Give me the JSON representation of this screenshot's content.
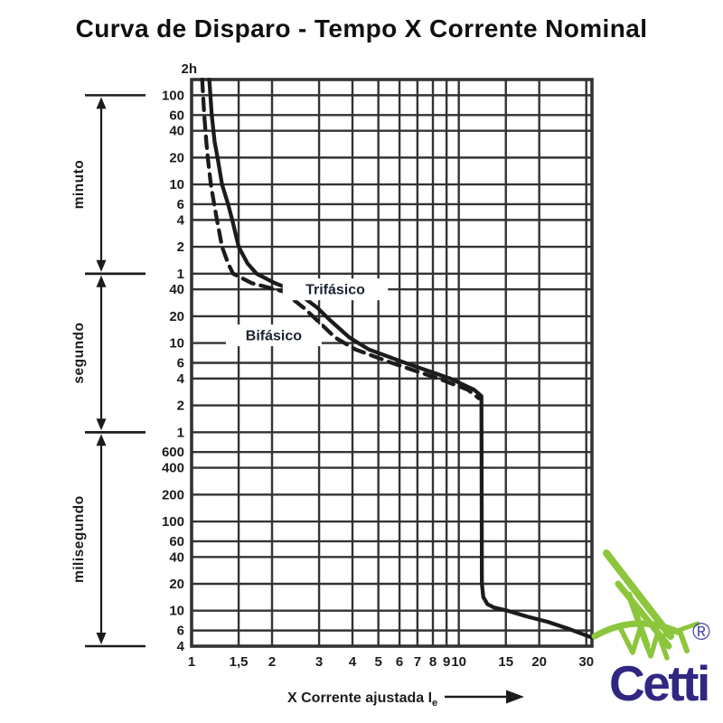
{
  "title": "Curva de Disparo - Tempo X Corrente Nominal",
  "colors": {
    "ink": "#1c1c1c",
    "grid": "#333333",
    "label_text": "#1b2330",
    "brand_navy": "#312783",
    "brand_green": "#8CC63C",
    "registered_purple": "#4a43a8"
  },
  "logo": {
    "brand": "Cetti",
    "registered": "®"
  },
  "chart_data": {
    "type": "line",
    "title": "Curva de Disparo - Tempo X Corrente Nominal",
    "xlabel": "X Corrente ajustada Ie",
    "xlabel_main": "X Corrente ajustada I",
    "xlabel_sub": "e",
    "grid": true,
    "x_axis": {
      "scale": "log",
      "min": 1,
      "max": 31.5,
      "ticks": [
        {
          "label": "1",
          "v": 1
        },
        {
          "label": "1,5",
          "v": 1.5
        },
        {
          "label": "2",
          "v": 2
        },
        {
          "label": "3",
          "v": 3
        },
        {
          "label": "4",
          "v": 4
        },
        {
          "label": "5",
          "v": 5
        },
        {
          "label": "6",
          "v": 6
        },
        {
          "label": "7",
          "v": 7
        },
        {
          "label": "8",
          "v": 8
        },
        {
          "label": "9",
          "v": 9
        },
        {
          "label": "10",
          "v": 10
        },
        {
          "label": "15",
          "v": 15
        },
        {
          "label": "20",
          "v": 20
        },
        {
          "label": "30",
          "v": 30
        }
      ]
    },
    "y_axis": {
      "scale": "log",
      "unit": "seconds",
      "min": 0.004,
      "max": 9000,
      "top_label": "2h",
      "ticks": [
        {
          "label": "100",
          "t": 6000
        },
        {
          "label": "60",
          "t": 3600
        },
        {
          "label": "40",
          "t": 2400
        },
        {
          "label": "20",
          "t": 1200
        },
        {
          "label": "10",
          "t": 600
        },
        {
          "label": "6",
          "t": 360
        },
        {
          "label": "4",
          "t": 240
        },
        {
          "label": "2",
          "t": 120
        },
        {
          "label": "1",
          "t": 60
        },
        {
          "label": "40",
          "t": 40
        },
        {
          "label": "20",
          "t": 20
        },
        {
          "label": "10",
          "t": 10
        },
        {
          "label": "6",
          "t": 6
        },
        {
          "label": "4",
          "t": 4
        },
        {
          "label": "2",
          "t": 2
        },
        {
          "label": "1",
          "t": 1
        },
        {
          "label": "600",
          "t": 0.6
        },
        {
          "label": "400",
          "t": 0.4
        },
        {
          "label": "200",
          "t": 0.2
        },
        {
          "label": "100",
          "t": 0.1
        },
        {
          "label": "60",
          "t": 0.06
        },
        {
          "label": "40",
          "t": 0.04
        },
        {
          "label": "20",
          "t": 0.02
        },
        {
          "label": "10",
          "t": 0.01
        },
        {
          "label": "6",
          "t": 0.006
        },
        {
          "label": "4",
          "t": 0.004
        }
      ],
      "sections": [
        {
          "label": "minuto",
          "from_s": 60,
          "to_s": 6000
        },
        {
          "label": "segundo",
          "from_s": 1,
          "to_s": 60
        },
        {
          "label": "milisegundo",
          "from_s": 0.004,
          "to_s": 1
        }
      ]
    },
    "gridlines_x": [
      1.5,
      2,
      3,
      4,
      5,
      6,
      7,
      8,
      9,
      10,
      15,
      20,
      30
    ],
    "gridlines_y_seconds": [
      6000,
      3600,
      2400,
      1200,
      600,
      360,
      240,
      120,
      60,
      40,
      20,
      10,
      6,
      4,
      2,
      1,
      0.6,
      0.4,
      0.2,
      0.1,
      0.06,
      0.04,
      0.02,
      0.01,
      0.006,
      0.004
    ],
    "series": [
      {
        "name": "Trifásico",
        "style": "solid",
        "label_anchor": {
          "x": 3.45,
          "t": 40
        },
        "points": [
          [
            1.165,
            9000
          ],
          [
            1.19,
            3600
          ],
          [
            1.22,
            1800
          ],
          [
            1.25,
            1200
          ],
          [
            1.3,
            600
          ],
          [
            1.37,
            360
          ],
          [
            1.42,
            240
          ],
          [
            1.5,
            120
          ],
          [
            1.62,
            78
          ],
          [
            1.75,
            60
          ],
          [
            2.05,
            47
          ],
          [
            2.45,
            38
          ],
          [
            2.95,
            25
          ],
          [
            3.3,
            18
          ],
          [
            3.9,
            11.5
          ],
          [
            4.6,
            8.5
          ],
          [
            6.3,
            6
          ],
          [
            9.3,
            4
          ],
          [
            11.4,
            3
          ],
          [
            12.15,
            2.55
          ],
          [
            12.2,
            0.02
          ],
          [
            12.35,
            0.0142
          ],
          [
            12.8,
            0.0118
          ],
          [
            13.6,
            0.0108
          ],
          [
            15.2,
            0.01
          ],
          [
            18.0,
            0.0086
          ],
          [
            21.5,
            0.0075
          ],
          [
            26.0,
            0.0062
          ],
          [
            31.4,
            0.005
          ]
        ]
      },
      {
        "name": "Bifásico",
        "style": "dashed",
        "label_anchor": {
          "x": 2.03,
          "t": 12.2
        },
        "points": [
          [
            1.095,
            9000
          ],
          [
            1.115,
            3600
          ],
          [
            1.135,
            1800
          ],
          [
            1.15,
            1200
          ],
          [
            1.18,
            600
          ],
          [
            1.215,
            360
          ],
          [
            1.245,
            240
          ],
          [
            1.3,
            120
          ],
          [
            1.37,
            78
          ],
          [
            1.43,
            60
          ],
          [
            1.68,
            47
          ],
          [
            2.2,
            38
          ],
          [
            2.62,
            25
          ],
          [
            2.95,
            18
          ],
          [
            3.45,
            11.5
          ],
          [
            4.1,
            8.5
          ],
          [
            5.6,
            6
          ],
          [
            8.4,
            4
          ],
          [
            10.8,
            3
          ],
          [
            11.9,
            2.4
          ]
        ]
      }
    ]
  }
}
